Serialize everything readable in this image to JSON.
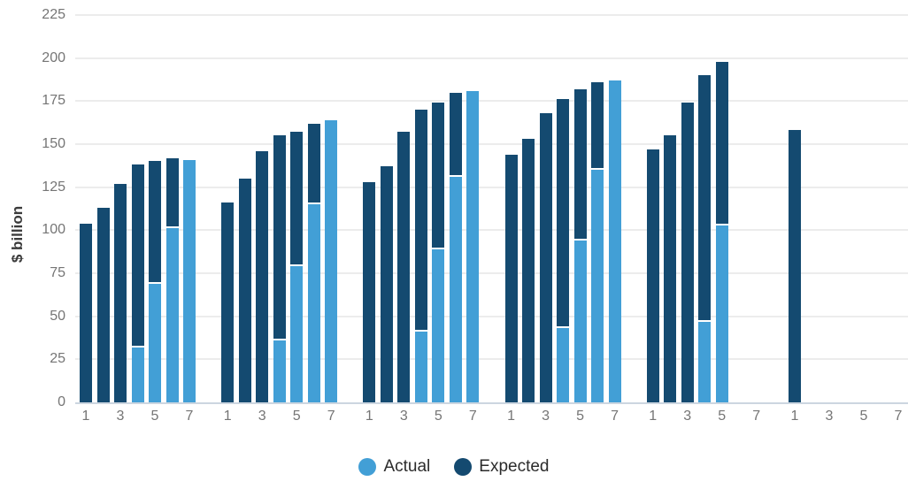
{
  "chart_data": {
    "type": "bar",
    "title": "",
    "ylabel": "$ billion",
    "ylim": [
      0,
      225
    ],
    "yticks": [
      0,
      25,
      50,
      75,
      100,
      125,
      150,
      175,
      200,
      225
    ],
    "grid": true,
    "legend_position": "bottom",
    "periods_per_group": 7,
    "group_xtick_labels": [
      "1",
      "3",
      "5",
      "7"
    ],
    "series": [
      {
        "name": "Actual",
        "color": "#429fd6"
      },
      {
        "name": "Expected",
        "color": "#144a70"
      }
    ],
    "groups": [
      {
        "expected": [
          104,
          113,
          127,
          138,
          140,
          142,
          null
        ],
        "actual": [
          null,
          null,
          null,
          33,
          70,
          102,
          141
        ]
      },
      {
        "expected": [
          116,
          130,
          146,
          155,
          157,
          162,
          null
        ],
        "actual": [
          null,
          null,
          null,
          37,
          80,
          116,
          164
        ]
      },
      {
        "expected": [
          128,
          137,
          157,
          170,
          174,
          180,
          null
        ],
        "actual": [
          null,
          null,
          null,
          42,
          90,
          132,
          181
        ]
      },
      {
        "expected": [
          144,
          153,
          168,
          176,
          182,
          186,
          null
        ],
        "actual": [
          null,
          null,
          null,
          44,
          95,
          136,
          187
        ]
      },
      {
        "expected": [
          147,
          155,
          174,
          190,
          198,
          null,
          null
        ],
        "actual": [
          null,
          null,
          null,
          48,
          104,
          null,
          null
        ]
      },
      {
        "expected": [
          158,
          null,
          null,
          null,
          null,
          null,
          null
        ],
        "actual": [
          null,
          null,
          null,
          null,
          null,
          null,
          null
        ]
      }
    ],
    "legend": {
      "entries": [
        {
          "label": "Actual",
          "color": "#429fd6"
        },
        {
          "label": "Expected",
          "color": "#144a70"
        }
      ]
    }
  },
  "style": {
    "actual_color": "#429fd6",
    "expected_color": "#144a70",
    "grid_color": "#ececec",
    "axis_line_color": "#ccd6e0",
    "tick_color": "#757575",
    "ylabel_color": "#3b3b3b",
    "legend_text_color": "#2b2b2b",
    "background": "#ffffff"
  }
}
